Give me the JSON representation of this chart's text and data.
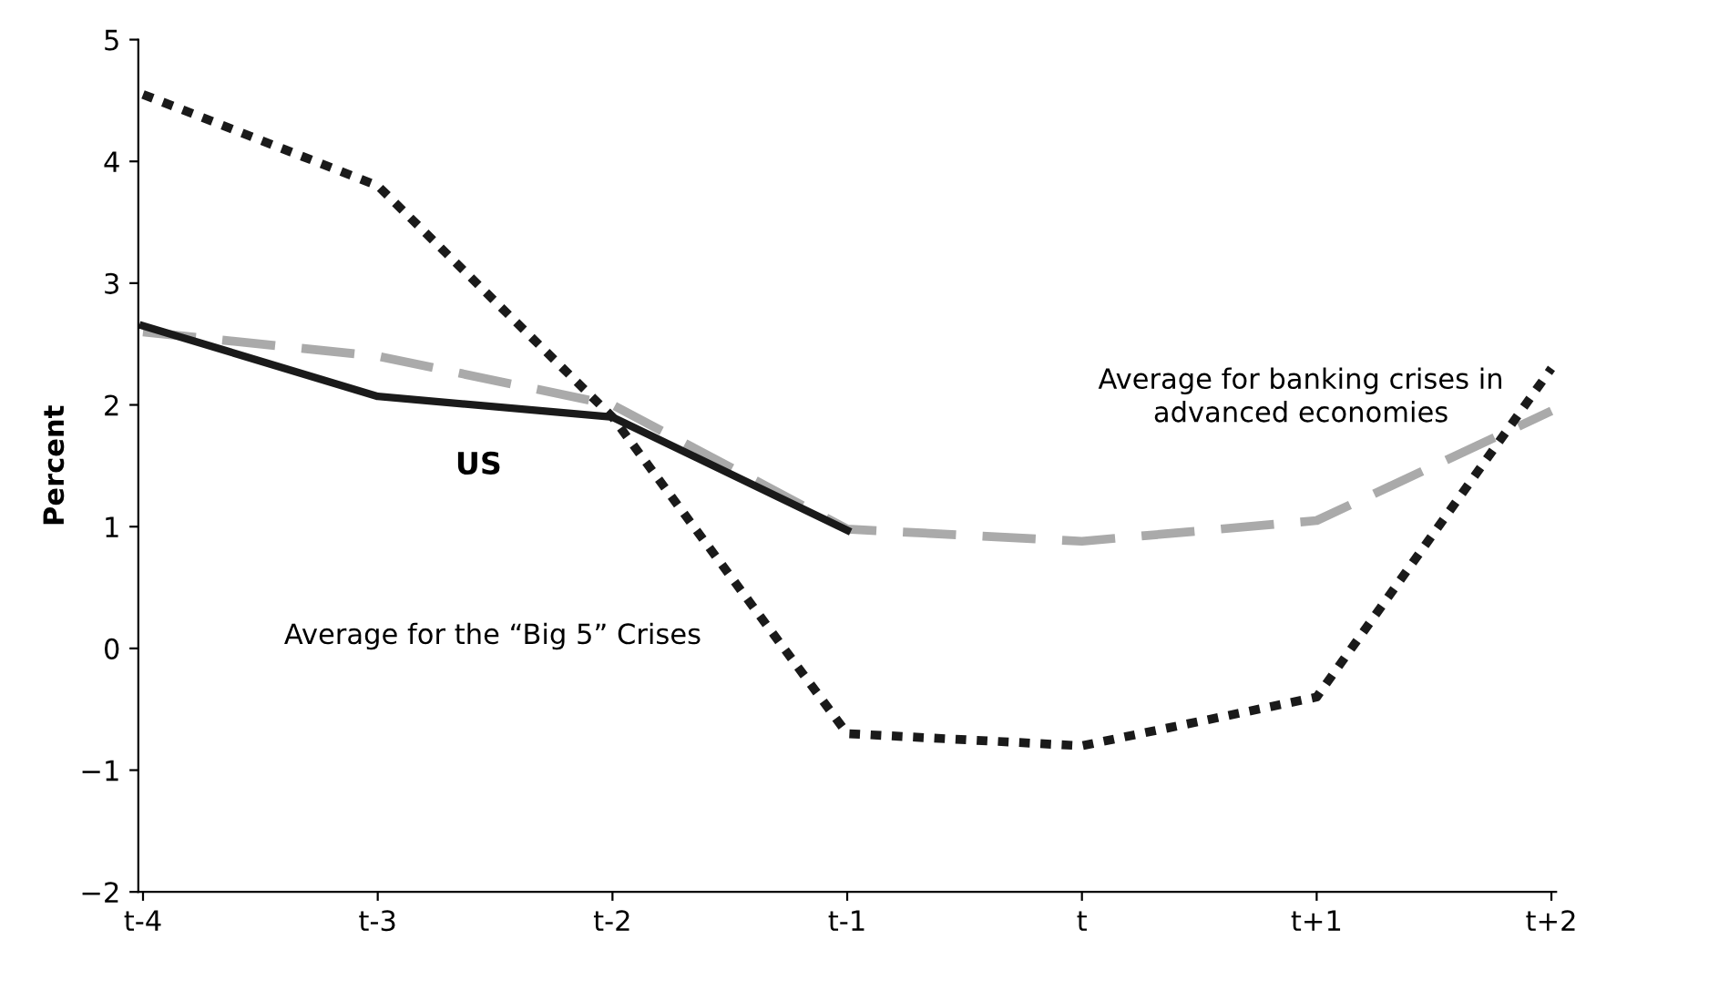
{
  "chart_data": {
    "type": "line",
    "ylabel": "Percent",
    "categories": [
      "t-4",
      "t-3",
      "t-2",
      "t-1",
      "t",
      "t+1",
      "t+2"
    ],
    "series": [
      {
        "color": "#aaaaaa",
        "line_style": "dashed",
        "values": [
          2.6,
          2.4,
          2.0,
          0.98,
          0.88,
          1.05,
          1.95
        ]
      },
      {
        "color": "#1a1a1a",
        "line_style": "dotted",
        "values": [
          4.55,
          3.8,
          1.9,
          -0.7,
          -0.8,
          -0.4,
          2.3
        ]
      },
      {
        "color": "#1a1a1a",
        "line_style": "solid",
        "values": [
          2.65,
          2.07,
          1.9,
          0.97,
          null,
          null,
          null
        ]
      }
    ],
    "annotations": [
      "US",
      "Average for banking crises in\nadvanced economies",
      "Average for the “Big 5” Crises"
    ],
    "ylim": [
      -2,
      5
    ],
    "yticks": [
      -2,
      -1,
      0,
      1,
      2,
      3,
      4,
      5
    ],
    "grid": false,
    "legend": false,
    "marker": "none"
  }
}
